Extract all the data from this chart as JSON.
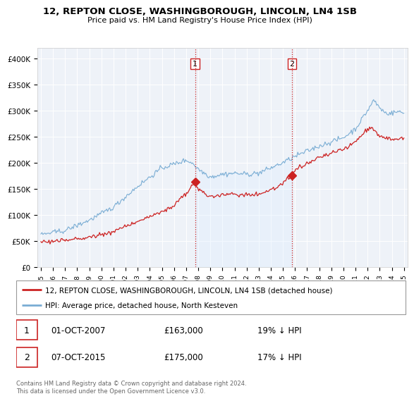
{
  "title": "12, REPTON CLOSE, WASHINGBOROUGH, LINCOLN, LN4 1SB",
  "subtitle": "Price paid vs. HM Land Registry's House Price Index (HPI)",
  "ylabel_ticks": [
    "£0",
    "£50K",
    "£100K",
    "£150K",
    "£200K",
    "£250K",
    "£300K",
    "£350K",
    "£400K"
  ],
  "ytick_values": [
    0,
    50000,
    100000,
    150000,
    200000,
    250000,
    300000,
    350000,
    400000
  ],
  "ylim": [
    0,
    420000
  ],
  "red_color": "#cc2222",
  "blue_color": "#7aadd4",
  "blue_fill_color": "#ddeeff",
  "vline_color": "#cc2222",
  "background_color": "#ffffff",
  "plot_bg": "#eef2f8",
  "legend_label_red": "12, REPTON CLOSE, WASHINGBOROUGH, LINCOLN, LN4 1SB (detached house)",
  "legend_label_blue": "HPI: Average price, detached house, North Kesteven",
  "annotation1_date": "01-OCT-2007",
  "annotation1_price": "£163,000",
  "annotation1_pct": "19% ↓ HPI",
  "annotation2_date": "07-OCT-2015",
  "annotation2_price": "£175,000",
  "annotation2_pct": "17% ↓ HPI",
  "footer": "Contains HM Land Registry data © Crown copyright and database right 2024.\nThis data is licensed under the Open Government Licence v3.0.",
  "vline1_x": 2007.75,
  "vline2_x": 2015.75,
  "marker1_x": 2007.75,
  "marker1_y": 163000,
  "marker2_x": 2015.75,
  "marker2_y": 175000,
  "xlim_left": 1994.7,
  "xlim_right": 2025.3
}
